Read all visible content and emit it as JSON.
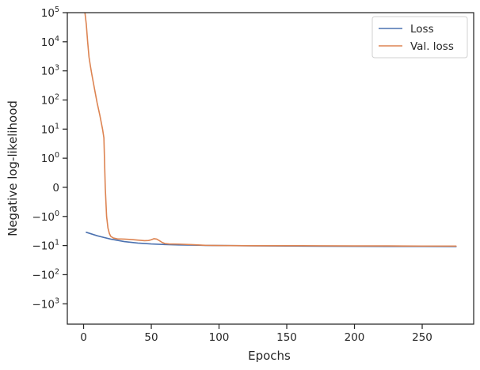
{
  "chart_data": {
    "type": "line",
    "xlabel": "Epochs",
    "ylabel": "Negative log-likelihood",
    "xlim": [
      -12,
      288
    ],
    "xticks": [
      0,
      50,
      100,
      150,
      200,
      250
    ],
    "yscale": "symlog",
    "ylim": [
      -5000,
      100000
    ],
    "ytick_labels": [
      {
        "value": 100000,
        "base": "10",
        "exp": "5"
      },
      {
        "value": 10000,
        "base": "10",
        "exp": "4"
      },
      {
        "value": 1000,
        "base": "10",
        "exp": "3"
      },
      {
        "value": 100,
        "base": "10",
        "exp": "2"
      },
      {
        "value": 10,
        "base": "10",
        "exp": "1"
      },
      {
        "value": 1,
        "base": "10",
        "exp": "0"
      },
      {
        "value": 0,
        "base": "0",
        "exp": ""
      },
      {
        "value": -1,
        "base": "−10",
        "exp": "0"
      },
      {
        "value": -10,
        "base": "−10",
        "exp": "1"
      },
      {
        "value": -100,
        "base": "−10",
        "exp": "2"
      },
      {
        "value": -1000,
        "base": "−10",
        "exp": "3"
      }
    ],
    "grid": false,
    "legend_position": "top-right",
    "series": [
      {
        "name": "Loss",
        "color": "#4c72b0",
        "x": [
          2,
          10,
          20,
          30,
          40,
          50,
          60,
          70,
          80,
          90,
          100,
          125,
          150,
          175,
          200,
          225,
          250,
          275
        ],
        "y": [
          -3.5,
          -4.6,
          -6.0,
          -7.3,
          -8.2,
          -8.8,
          -9.2,
          -9.5,
          -9.7,
          -9.9,
          -10.0,
          -10.2,
          -10.4,
          -10.5,
          -10.6,
          -10.7,
          -10.7,
          -10.8
        ]
      },
      {
        "name": "Val. loss",
        "color": "#dd8452",
        "x": [
          1,
          2,
          3,
          4,
          5,
          6,
          8,
          10,
          12,
          14,
          15,
          16,
          17,
          18,
          19,
          20,
          22,
          25,
          30,
          35,
          40,
          45,
          48,
          50,
          52,
          54,
          56,
          58,
          60,
          63,
          70,
          80,
          90,
          100,
          125,
          150,
          175,
          200,
          225,
          250,
          275
        ],
        "y": [
          100000,
          40000,
          10000,
          3000,
          1500,
          800,
          250,
          80,
          30,
          10,
          5,
          0,
          -1.0,
          -2.5,
          -3.8,
          -4.8,
          -5.5,
          -5.9,
          -6.0,
          -6.2,
          -6.5,
          -6.8,
          -6.7,
          -6.3,
          -5.8,
          -6.0,
          -6.8,
          -7.8,
          -8.5,
          -8.8,
          -8.9,
          -9.3,
          -9.8,
          -10.0,
          -10.1,
          -10.1,
          -10.2,
          -10.3,
          -10.3,
          -10.4,
          -10.4
        ]
      }
    ]
  }
}
